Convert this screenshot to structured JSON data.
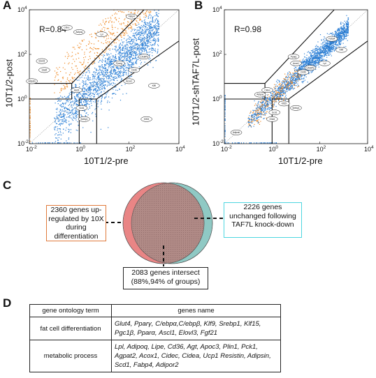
{
  "panels": {
    "a": {
      "label": "A",
      "r_text": "R=0.84",
      "ylabel": "10T1/2-post",
      "xlabel": "10T1/2-pre"
    },
    "b": {
      "label": "B",
      "r_text": "R=0.98",
      "ylabel": "10T1/2-shTAF7L-post",
      "xlabel": "10T1/2-pre"
    },
    "c": {
      "label": "C",
      "left_box": "2360 genes up-regulated by 10X during differentiation",
      "right_box": "2226 genes unchanged following TAF7L knock-down",
      "bottom_box": "2083 genes intersect (88%,94% of groups)"
    },
    "d": {
      "label": "D",
      "header_term": "gene ontology term",
      "header_genes": "genes name",
      "rows": [
        {
          "term": "fat cell differentiation",
          "genes": "Glut4, Pparγ, C/ebpα,C/ebpβ, Klf9, Srebp1, Klf15, Pgc1β, Pparα, Ascl1, Elovl3, Fgf21"
        },
        {
          "term": "metabolic process",
          "genes": "Lpl, Adipoq, Lipe, Cd36, Agt, Apoc3, Plin1, Pck1, Agpat2, Acox1, Cidec, Cidea, Ucp1 Resistin, Adipsin, Scd1, Fabp4, Adipor2"
        }
      ]
    }
  },
  "axis_ticks": {
    "base": "10",
    "exponents": [
      "-2",
      "0",
      "2",
      "4"
    ]
  },
  "colors": {
    "blue": "#2b7fd6",
    "orange": "#f08a24",
    "venn_left": "#e98585",
    "venn_right": "#8fc9c4",
    "venn_overlap": "#b08a86",
    "left_box_border": "#e07a3c",
    "right_box_border": "#4dd6e0"
  },
  "chart_data": [
    {
      "type": "scatter",
      "panel": "A",
      "title": "",
      "xlabel": "10T1/2-pre",
      "ylabel": "10T1/2-post",
      "log_scale": true,
      "xlim": [
        0.01,
        10000
      ],
      "ylim": [
        0.01,
        10000
      ],
      "annotation": "R=0.84",
      "series": [
        {
          "color": "#2b7fd6",
          "description_points": "bulk genes along diagonal"
        },
        {
          "color": "#f08a24",
          "description_points": "genes up-regulated >=10X"
        }
      ],
      "gene_labels": [
        "Fabp4",
        "Cidec",
        "Adipoq",
        "Lpl",
        "Elovl3",
        "Glut4",
        "Adipsin",
        "Pparg",
        "C/EBPa",
        "Cd36",
        "Acox1",
        "Klf9",
        "Scd1",
        "Srebp1",
        "Klf15",
        "Ascl1"
      ]
    },
    {
      "type": "scatter",
      "panel": "B",
      "title": "",
      "xlabel": "10T1/2-pre",
      "ylabel": "10T1/2-shTAF7L-post",
      "log_scale": true,
      "xlim": [
        0.01,
        10000
      ],
      "ylim": [
        0.01,
        10000
      ],
      "annotation": "R=0.98",
      "gene_labels": [
        "Fabp4",
        "Pparg",
        "Acox1",
        "C/EBPa",
        "Lpl",
        "Klf9",
        "Cd36",
        "Cidec",
        "Adipoq",
        "Scd1",
        "Glut4",
        "Srebp1",
        "Klf15",
        "Adipsin"
      ]
    }
  ]
}
